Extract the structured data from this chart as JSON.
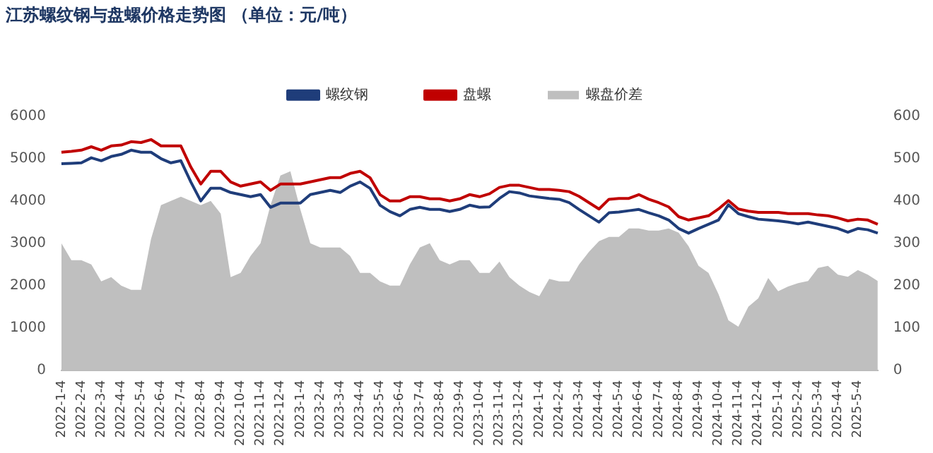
{
  "chart_data": {
    "type": "line",
    "title": "江苏螺纹钢与盘螺价格走势图 （单位：元/吨）",
    "categories": [
      "2022-1-4",
      null,
      "2022-2-4",
      null,
      "2022-3-4",
      null,
      "2022-4-4",
      null,
      "2022-5-4",
      null,
      "2022-6-4",
      null,
      "2022-7-4",
      null,
      "2022-8-4",
      null,
      "2022-9-4",
      null,
      "2022-10-4",
      null,
      "2022-11-4",
      null,
      "2022-12-4",
      null,
      "2023-1-4",
      null,
      "2023-2-4",
      null,
      "2023-3-4",
      null,
      "2023-4-4",
      null,
      "2023-5-4",
      null,
      "2023-6-4",
      null,
      "2023-7-4",
      null,
      "2023-8-4",
      null,
      "2023-9-4",
      null,
      "2023-10-4",
      null,
      "2023-11-4",
      null,
      "2023-12-4",
      null,
      "2024-1-4",
      null,
      "2024-2-4",
      null,
      "2024-3-4",
      null,
      "2024-4-4",
      null,
      "2024-5-4",
      null,
      "2024-6-4",
      null,
      "2024-7-4",
      null,
      "2024-8-4",
      null,
      "2024-9-4",
      null,
      "2024-10-4",
      null,
      "2024-11-4",
      null,
      "2024-12-4",
      null,
      "2025-1-4",
      null,
      "2025-2-4",
      null,
      "2025-3-4",
      null,
      "2025-4-4",
      null,
      "2025-5-4",
      null,
      null
    ],
    "series": [
      {
        "name": "螺盘价差",
        "type": "area",
        "axis": "y2",
        "color": "#bfbfbf",
        "values": [
          300,
          260,
          260,
          250,
          210,
          220,
          200,
          190,
          190,
          310,
          390,
          400,
          410,
          400,
          390,
          400,
          370,
          220,
          230,
          270,
          300,
          390,
          460,
          470,
          380,
          300,
          290,
          290,
          290,
          270,
          230,
          230,
          210,
          200,
          200,
          250,
          290,
          300,
          260,
          250,
          260,
          260,
          230,
          230,
          257,
          220,
          200,
          185,
          175,
          216,
          210,
          210,
          250,
          280,
          305,
          315,
          315,
          335,
          335,
          330,
          330,
          335,
          325,
          293,
          247,
          230,
          180,
          118,
          103,
          150,
          170,
          218,
          187,
          198,
          206,
          211,
          242,
          247,
          226,
          221,
          237,
          226,
          211
        ]
      },
      {
        "name": "螺纹钢",
        "color": "#1f3d7a",
        "values": [
          4880,
          4890,
          4900,
          5020,
          4950,
          5050,
          5100,
          5200,
          5150,
          5150,
          5000,
          4900,
          4950,
          4450,
          4000,
          4300,
          4300,
          4200,
          4150,
          4100,
          4150,
          3850,
          3950,
          3950,
          3950,
          4150,
          4200,
          4250,
          4200,
          4350,
          4450,
          4300,
          3900,
          3750,
          3650,
          3800,
          3850,
          3800,
          3800,
          3750,
          3800,
          3900,
          3850,
          3860,
          4060,
          4220,
          4190,
          4120,
          4090,
          4060,
          4040,
          3960,
          3800,
          3650,
          3500,
          3720,
          3740,
          3770,
          3800,
          3720,
          3650,
          3550,
          3350,
          3240,
          3350,
          3450,
          3550,
          3910,
          3700,
          3630,
          3570,
          3550,
          3530,
          3500,
          3460,
          3500,
          3450,
          3400,
          3350,
          3260,
          3350,
          3320,
          3240
        ]
      },
      {
        "name": "盘螺",
        "color": "#c00000",
        "values": [
          5150,
          5170,
          5200,
          5280,
          5200,
          5300,
          5320,
          5400,
          5380,
          5450,
          5300,
          5300,
          5300,
          4800,
          4400,
          4700,
          4700,
          4450,
          4350,
          4400,
          4450,
          4250,
          4400,
          4400,
          4400,
          4450,
          4500,
          4550,
          4550,
          4650,
          4700,
          4550,
          4150,
          4000,
          4000,
          4100,
          4100,
          4050,
          4050,
          4000,
          4050,
          4150,
          4100,
          4170,
          4320,
          4370,
          4370,
          4320,
          4270,
          4270,
          4250,
          4220,
          4110,
          3960,
          3810,
          4040,
          4060,
          4060,
          4150,
          4040,
          3960,
          3860,
          3630,
          3550,
          3600,
          3650,
          3810,
          4010,
          3810,
          3760,
          3730,
          3730,
          3730,
          3700,
          3700,
          3700,
          3670,
          3650,
          3600,
          3530,
          3570,
          3550,
          3450
        ]
      }
    ],
    "ylim": [
      0,
      6000
    ],
    "yticks": [
      0,
      1000,
      2000,
      3000,
      4000,
      5000,
      6000
    ],
    "y2lim": [
      0,
      600
    ],
    "y2ticks": [
      0,
      100,
      200,
      300,
      400,
      500,
      600
    ],
    "legend": "top",
    "grid": false
  }
}
